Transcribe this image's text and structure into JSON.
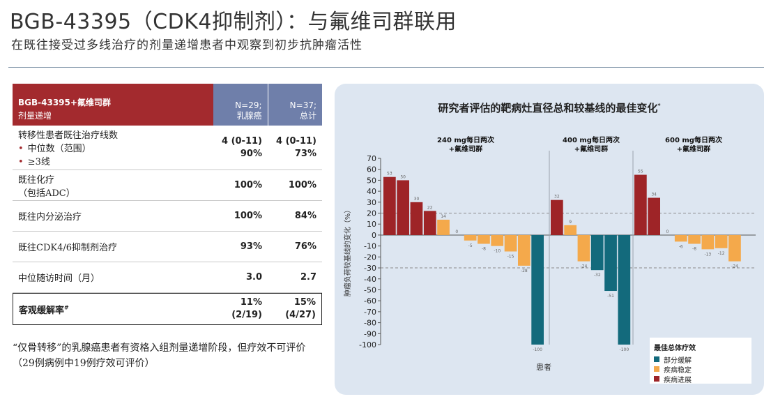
{
  "header": {
    "title": "BGB-43395（CDK4抑制剂）：与氟维司群联用",
    "subtitle": "在既往接受过多线治疗的剂量递增患者中观察到初步抗肿瘤活性"
  },
  "table": {
    "head": {
      "label1": "BGB-43395+氟维司群",
      "label2": "剂量递增",
      "col1a": "N=29;",
      "col1b": "乳腺癌",
      "col2a": "N=37;",
      "col2b": "总计"
    },
    "rows": [
      {
        "label": "转移性患者既往治疗线数",
        "sub1": "中位数（范围）",
        "sub2": "≥3线",
        "c1a": "4 (0-11)",
        "c1b": "90%",
        "c2a": "4 (0-11)",
        "c2b": "73%"
      },
      {
        "label": "既往化疗",
        "label2": "（包括ADC）",
        "c1": "100%",
        "c2": "100%"
      },
      {
        "label": "既往内分泌治疗",
        "c1": "100%",
        "c2": "84%"
      },
      {
        "label": "既往CDK4/6抑制剂治疗",
        "c1": "93%",
        "c2": "76%"
      },
      {
        "label": "中位随访时间（月）",
        "c1": "3.0",
        "c2": "2.7"
      },
      {
        "label": "客观缓解率",
        "c1a": "11%",
        "c1b": "(2/19)",
        "c2a": "15%",
        "c2b": "(4/27)"
      }
    ]
  },
  "footnote": "“仅骨转移”的乳腺癌患者有资格入组剂量递增阶段，但疗效不可评价 （29例病例中19例疗效可评价）",
  "chart_data": {
    "type": "bar",
    "title": "研究者评估的靶病灶直径总和较基线的最佳变化",
    "ylabel": "肿瘤负荷较基线的变化（%）",
    "xlabel": "患者",
    "ylim": [
      -100,
      70
    ],
    "yticks": [
      70,
      60,
      50,
      40,
      30,
      20,
      10,
      0,
      -10,
      -20,
      -30,
      -40,
      -50,
      -60,
      -70,
      -80,
      -90,
      -100
    ],
    "reference_lines": [
      20,
      -30
    ],
    "groups": [
      {
        "name": "240 mg每日两次",
        "name2": "+氟维司群",
        "values": [
          53,
          50,
          30,
          22,
          14,
          0,
          -5,
          -8,
          -10,
          -15,
          -28,
          -100
        ],
        "response": [
          "PD",
          "PD",
          "PD",
          "PD",
          "SD",
          "SD",
          "SD",
          "SD",
          "SD",
          "SD",
          "SD",
          "PR"
        ]
      },
      {
        "name": "400 mg每日两次",
        "name2": "+氟维司群",
        "values": [
          32,
          9,
          -24,
          -32,
          -51,
          -100
        ],
        "response": [
          "PD",
          "SD",
          "SD",
          "PR",
          "PR",
          "PR"
        ]
      },
      {
        "name": "600 mg每日两次",
        "name2": "+氟维司群",
        "values": [
          55,
          34,
          0,
          -6,
          -8,
          -13,
          -12,
          -24
        ],
        "response": [
          "PD",
          "PD",
          "SD",
          "SD",
          "SD",
          "SD",
          "SD",
          "SD"
        ]
      }
    ],
    "legend": {
      "title": "最佳总体疗效",
      "items": [
        {
          "code": "PR",
          "label": "部分缓解",
          "color": "#136a7c"
        },
        {
          "code": "SD",
          "label": "疾病稳定",
          "color": "#f4a94b"
        },
        {
          "code": "PD",
          "label": "疾病进展",
          "color": "#9e2427"
        }
      ]
    }
  }
}
